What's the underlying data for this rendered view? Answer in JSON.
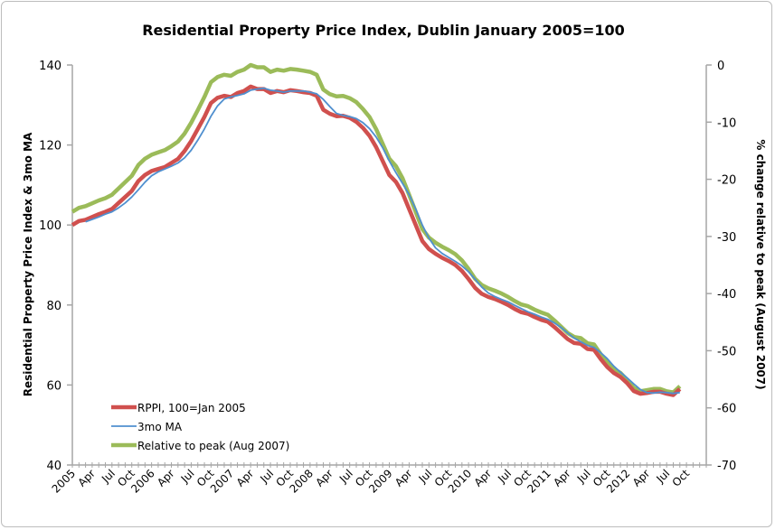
{
  "chart_data": {
    "type": "line",
    "title": "Residential Property Price Index, Dublin January 2005=100",
    "ylabel": "Residential Property Price Index & 3mo MA",
    "y2label": "% change relative to peak (August 2007)",
    "ylim": [
      40,
      140
    ],
    "yticks": [
      40,
      60,
      80,
      100,
      120,
      140
    ],
    "y2lim": [
      -70,
      0
    ],
    "y2ticks": [
      -70,
      -60,
      -50,
      -40,
      -30,
      -20,
      -10,
      0
    ],
    "x_start": "Jan 2005",
    "x_end": "Dec 2012",
    "xtick_labels": [
      "2005",
      "Apr",
      "Jul",
      "Oct",
      "2006",
      "Apr",
      "Jul",
      "Oct",
      "2007",
      "Apr",
      "Jul",
      "Oct",
      "2008",
      "Apr",
      "Jul",
      "Oct",
      "2009",
      "Apr",
      "Jul",
      "Oct",
      "2010",
      "Apr",
      "Jul",
      "Oct",
      "2011",
      "Apr",
      "Jul",
      "Oct",
      "2012",
      "Apr",
      "Jul",
      "Oct"
    ],
    "grid": false,
    "legend_position": "bottom-left",
    "series": [
      {
        "name": "RPPI, 100=Jan 2005",
        "axis": "left",
        "color": "#d0504e",
        "values": [
          100,
          101,
          101.3,
          102,
          102.7,
          103.3,
          104,
          105.5,
          107,
          108.5,
          111,
          112.5,
          113.5,
          114,
          114.5,
          115.5,
          116.5,
          118.5,
          121,
          124,
          127,
          130.5,
          131.8,
          132.3,
          132,
          133,
          133.5,
          134.6,
          134,
          134,
          133,
          133.5,
          133.2,
          133.7,
          133.5,
          133.2,
          133,
          132.3,
          128.8,
          127.8,
          127.2,
          127.3,
          126.8,
          125.8,
          124.3,
          122.3,
          119.5,
          116,
          112.5,
          110.8,
          108,
          104,
          100,
          96,
          94,
          92.8,
          91.8,
          91,
          90,
          88.5,
          86.5,
          84.3,
          82.8,
          82,
          81.5,
          80.8,
          80,
          79,
          78.2,
          77.8,
          77,
          76.3,
          75.8,
          74.5,
          73,
          71.5,
          70.5,
          70.3,
          69,
          68.8,
          66.5,
          64.5,
          63,
          62,
          60.5,
          58.5,
          57.8,
          58,
          58.3,
          58.3,
          57.8,
          57.5,
          59
        ]
      },
      {
        "name": "3mo MA",
        "axis": "left",
        "color": "#4f8fcf",
        "values": [
          null,
          null,
          100.8,
          101.4,
          102.0,
          102.7,
          103.3,
          104.3,
          105.5,
          107.0,
          108.8,
          110.7,
          112.3,
          113.3,
          114.0,
          114.7,
          115.5,
          116.8,
          118.7,
          121.2,
          124.0,
          127.2,
          129.8,
          131.5,
          132.0,
          132.4,
          132.8,
          133.7,
          134.0,
          134.2,
          133.7,
          133.5,
          133.2,
          133.5,
          133.5,
          133.5,
          133.2,
          132.8,
          131.4,
          129.6,
          127.9,
          127.4,
          127.1,
          126.6,
          125.6,
          124.1,
          122.0,
          119.3,
          116.0,
          113.1,
          110.4,
          107.6,
          104.0,
          100.0,
          96.7,
          94.3,
          92.9,
          91.9,
          90.9,
          89.8,
          88.3,
          86.4,
          84.5,
          83.0,
          82.1,
          81.4,
          80.8,
          79.9,
          79.1,
          78.3,
          77.7,
          77.0,
          76.4,
          75.5,
          74.4,
          73.0,
          71.7,
          70.8,
          69.9,
          69.4,
          68.1,
          66.6,
          64.7,
          63.2,
          61.8,
          60.3,
          58.9,
          58.1,
          58.0,
          58.2,
          58.1,
          57.9,
          58.1
        ]
      },
      {
        "name": "Relative to peak (Aug 2007)",
        "axis": "right",
        "color": "#9bbb59",
        "values": [
          -25.7,
          -25.0,
          -24.7,
          -24.2,
          -23.7,
          -23.3,
          -22.7,
          -21.6,
          -20.5,
          -19.4,
          -17.5,
          -16.4,
          -15.7,
          -15.3,
          -14.9,
          -14.2,
          -13.4,
          -12.0,
          -10.1,
          -7.9,
          -5.6,
          -3.0,
          -2.1,
          -1.7,
          -1.9,
          -1.2,
          -0.8,
          0.0,
          -0.4,
          -0.4,
          -1.2,
          -0.8,
          -1.0,
          -0.7,
          -0.8,
          -1.0,
          -1.2,
          -1.7,
          -4.3,
          -5.1,
          -5.5,
          -5.4,
          -5.8,
          -6.5,
          -7.7,
          -9.1,
          -11.2,
          -13.8,
          -16.4,
          -17.7,
          -19.8,
          -22.7,
          -25.7,
          -28.7,
          -30.2,
          -31.1,
          -31.8,
          -32.4,
          -33.1,
          -34.2,
          -35.7,
          -37.4,
          -38.5,
          -39.1,
          -39.5,
          -40.0,
          -40.6,
          -41.3,
          -41.9,
          -42.2,
          -42.8,
          -43.3,
          -43.7,
          -44.7,
          -45.8,
          -46.9,
          -47.6,
          -47.8,
          -48.7,
          -48.9,
          -50.6,
          -52.1,
          -53.2,
          -53.9,
          -55.1,
          -56.5,
          -57.1,
          -56.9,
          -56.7,
          -56.7,
          -57.1,
          -57.3,
          -56.2
        ]
      }
    ]
  }
}
